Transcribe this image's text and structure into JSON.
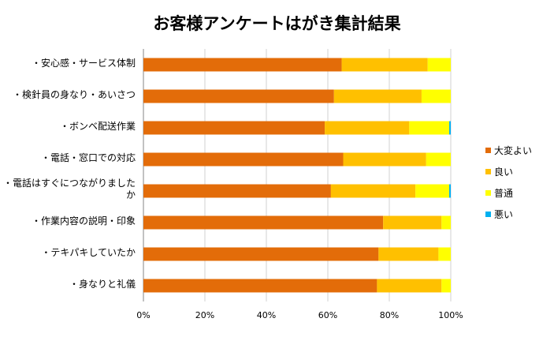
{
  "chart_data": {
    "type": "bar",
    "orientation": "horizontal",
    "stacked": "percent",
    "title": "お客様アンケートはがき集計結果",
    "categories": [
      "・安心感・サービス体制",
      "・検針員の身なり・あいさつ",
      "・ボンベ配送作業",
      "・電話・窓口での対応",
      "・電話はすぐにつながりましたか",
      "・作業内容の説明・印象",
      "・テキパキしていたか",
      "・身なりと礼儀"
    ],
    "series": [
      {
        "name": "大変よい",
        "color": "#E36C09",
        "values": [
          64.5,
          62,
          59,
          65,
          61,
          78,
          76.5,
          76
        ]
      },
      {
        "name": "良い",
        "color": "#FFC000",
        "values": [
          28,
          28.5,
          27.5,
          27,
          27.5,
          19,
          19.5,
          21
        ]
      },
      {
        "name": "普通",
        "color": "#FFFF00",
        "values": [
          7.5,
          9.5,
          13,
          8,
          11,
          3,
          4,
          3
        ]
      },
      {
        "name": "悪い",
        "color": "#00B0F0",
        "values": [
          0,
          0,
          0.5,
          0,
          0.5,
          0,
          0,
          0
        ]
      }
    ],
    "xaxis": {
      "ticks": [
        "0%",
        "20%",
        "40%",
        "60%",
        "80%",
        "100%"
      ],
      "range": [
        0,
        100
      ]
    },
    "grid": true,
    "legend_position": "right"
  }
}
